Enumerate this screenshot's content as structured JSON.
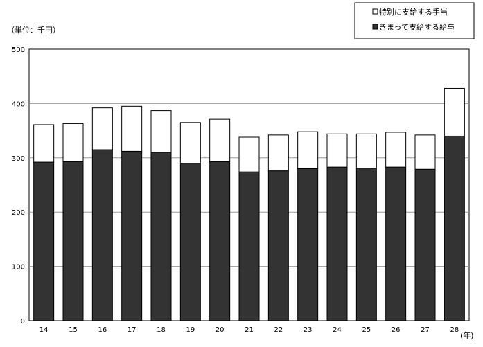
{
  "chart_data": {
    "type": "bar",
    "stacked": true,
    "unit_label": "（単位：千円）",
    "xlabel": "(年)",
    "ylabel": "",
    "ylim": [
      0,
      500
    ],
    "yticks": [
      0,
      100,
      200,
      300,
      400,
      500
    ],
    "grid": true,
    "legend_position": "top-right",
    "categories": [
      "14",
      "15",
      "16",
      "17",
      "18",
      "19",
      "20",
      "21",
      "22",
      "23",
      "24",
      "25",
      "26",
      "27",
      "28"
    ],
    "series": [
      {
        "name": "きまって支給する給与",
        "color": "#333333",
        "values": [
          292,
          293,
          315,
          312,
          310,
          290,
          293,
          274,
          276,
          280,
          283,
          281,
          283,
          279,
          340
        ]
      },
      {
        "name": "特別に支給する手当",
        "color": "#ffffff",
        "values": [
          69,
          70,
          77,
          83,
          77,
          75,
          78,
          64,
          66,
          68,
          61,
          63,
          64,
          63,
          88
        ]
      }
    ]
  }
}
